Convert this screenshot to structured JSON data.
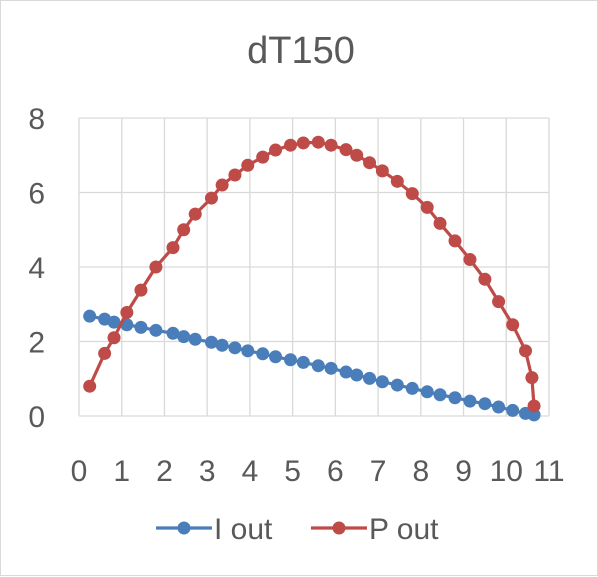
{
  "chart_data": {
    "type": "scatter",
    "title": "dT150",
    "xlabel": "",
    "ylabel": "",
    "xlim": [
      0,
      11
    ],
    "ylim": [
      0,
      8
    ],
    "x_ticks": [
      "0",
      "1",
      "2",
      "3",
      "4",
      "5",
      "6",
      "7",
      "8",
      "9",
      "10",
      "11"
    ],
    "y_ticks": [
      "0",
      "2",
      "4",
      "6",
      "8"
    ],
    "grid": true,
    "legend_position": "bottom",
    "series": [
      {
        "name": "I out",
        "color": "#4a7ebb",
        "points": [
          [
            0.25,
            2.68
          ],
          [
            0.6,
            2.6
          ],
          [
            0.82,
            2.52
          ],
          [
            1.12,
            2.45
          ],
          [
            1.45,
            2.38
          ],
          [
            1.8,
            2.3
          ],
          [
            2.2,
            2.22
          ],
          [
            2.45,
            2.13
          ],
          [
            2.72,
            2.06
          ],
          [
            3.1,
            1.98
          ],
          [
            3.35,
            1.9
          ],
          [
            3.65,
            1.83
          ],
          [
            3.95,
            1.75
          ],
          [
            4.3,
            1.67
          ],
          [
            4.6,
            1.59
          ],
          [
            4.95,
            1.51
          ],
          [
            5.25,
            1.44
          ],
          [
            5.6,
            1.35
          ],
          [
            5.9,
            1.28
          ],
          [
            6.25,
            1.18
          ],
          [
            6.5,
            1.1
          ],
          [
            6.8,
            1.01
          ],
          [
            7.1,
            0.92
          ],
          [
            7.45,
            0.83
          ],
          [
            7.8,
            0.74
          ],
          [
            8.15,
            0.65
          ],
          [
            8.45,
            0.57
          ],
          [
            8.8,
            0.49
          ],
          [
            9.15,
            0.4
          ],
          [
            9.5,
            0.33
          ],
          [
            9.82,
            0.24
          ],
          [
            10.15,
            0.15
          ],
          [
            10.45,
            0.07
          ],
          [
            10.65,
            0.03
          ]
        ]
      },
      {
        "name": "P out",
        "color": "#be4b48",
        "points": [
          [
            0.25,
            0.8
          ],
          [
            0.6,
            1.68
          ],
          [
            0.82,
            2.1
          ],
          [
            1.12,
            2.78
          ],
          [
            1.45,
            3.38
          ],
          [
            1.8,
            4.0
          ],
          [
            2.2,
            4.52
          ],
          [
            2.45,
            5.0
          ],
          [
            2.72,
            5.42
          ],
          [
            3.1,
            5.85
          ],
          [
            3.35,
            6.2
          ],
          [
            3.65,
            6.47
          ],
          [
            3.95,
            6.73
          ],
          [
            4.3,
            6.95
          ],
          [
            4.6,
            7.14
          ],
          [
            4.95,
            7.27
          ],
          [
            5.25,
            7.33
          ],
          [
            5.6,
            7.35
          ],
          [
            5.9,
            7.27
          ],
          [
            6.25,
            7.15
          ],
          [
            6.5,
            7.0
          ],
          [
            6.8,
            6.8
          ],
          [
            7.1,
            6.58
          ],
          [
            7.45,
            6.3
          ],
          [
            7.8,
            5.97
          ],
          [
            8.15,
            5.6
          ],
          [
            8.45,
            5.17
          ],
          [
            8.8,
            4.7
          ],
          [
            9.15,
            4.2
          ],
          [
            9.5,
            3.67
          ],
          [
            9.82,
            3.07
          ],
          [
            10.15,
            2.45
          ],
          [
            10.45,
            1.75
          ],
          [
            10.6,
            1.03
          ],
          [
            10.65,
            0.27
          ]
        ]
      }
    ]
  }
}
